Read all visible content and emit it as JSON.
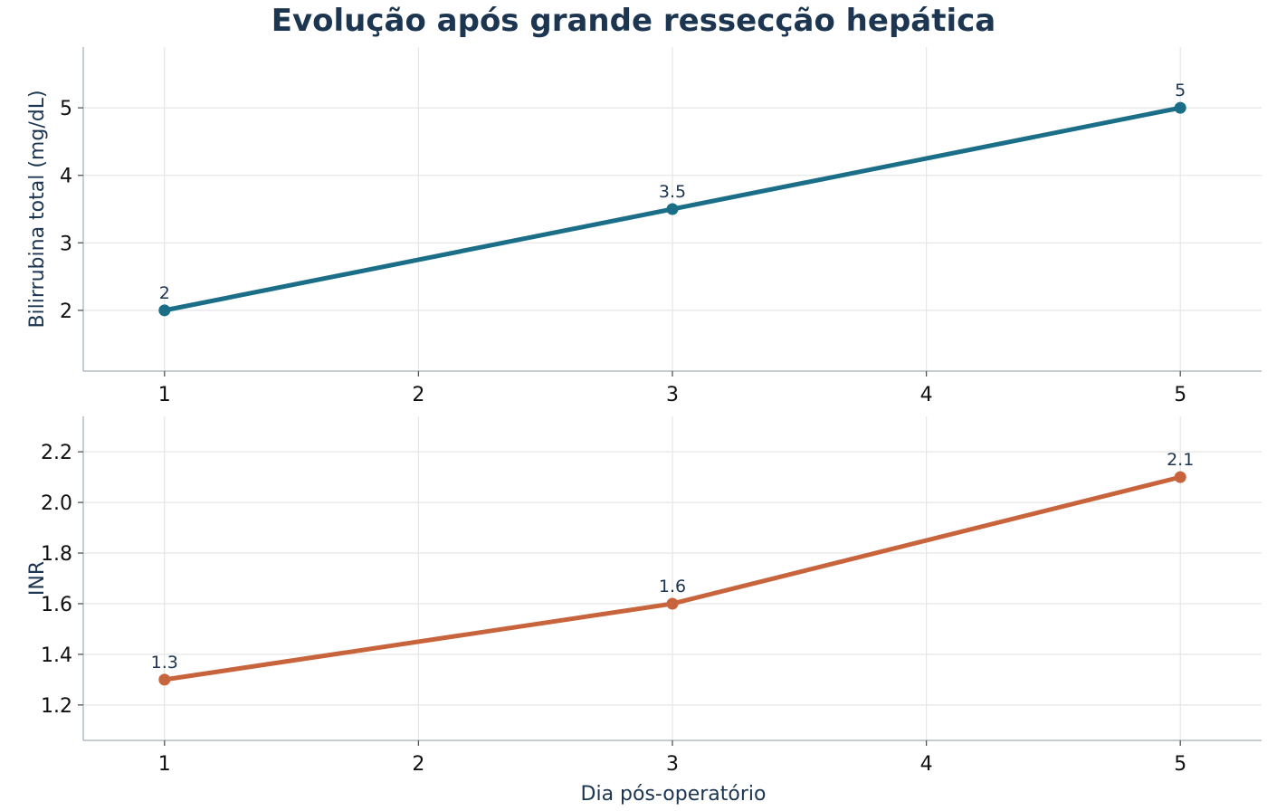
{
  "title": "Evolução após grande ressecção hepática",
  "chart_data": [
    {
      "type": "line",
      "x": [
        1,
        3,
        5
      ],
      "series": [
        {
          "values": [
            2,
            3.5,
            5
          ],
          "color": "#1b6e87",
          "data_labels": [
            "2",
            "3.5",
            "5"
          ]
        }
      ],
      "xlabel": "",
      "ylabel": "Bilirrubina total (mg/dL)",
      "xticks": [
        1,
        2,
        3,
        4,
        5
      ],
      "xtick_labels": [
        "1",
        "2",
        "3",
        "4",
        "5"
      ],
      "yticks": [
        2,
        3,
        4,
        5
      ],
      "ytick_labels": [
        "2",
        "3",
        "4",
        "5"
      ],
      "xlim": [
        0.68,
        5.32
      ],
      "ylim": [
        1.1,
        5.9
      ],
      "grid": true
    },
    {
      "type": "line",
      "x": [
        1,
        3,
        5
      ],
      "series": [
        {
          "values": [
            1.3,
            1.6,
            2.1
          ],
          "color": "#c8643c",
          "data_labels": [
            "1.3",
            "1.6",
            "2.1"
          ]
        }
      ],
      "xlabel": "Dia pós-operatório",
      "ylabel": "INR",
      "xticks": [
        1,
        2,
        3,
        4,
        5
      ],
      "xtick_labels": [
        "1",
        "2",
        "3",
        "4",
        "5"
      ],
      "yticks": [
        1.2,
        1.4,
        1.6,
        1.8,
        2.0,
        2.2
      ],
      "ytick_labels": [
        "1.2",
        "1.4",
        "1.6",
        "1.8",
        "2.0",
        "2.2"
      ],
      "xlim": [
        0.68,
        5.32
      ],
      "ylim": [
        1.06,
        2.34
      ],
      "grid": true
    }
  ]
}
